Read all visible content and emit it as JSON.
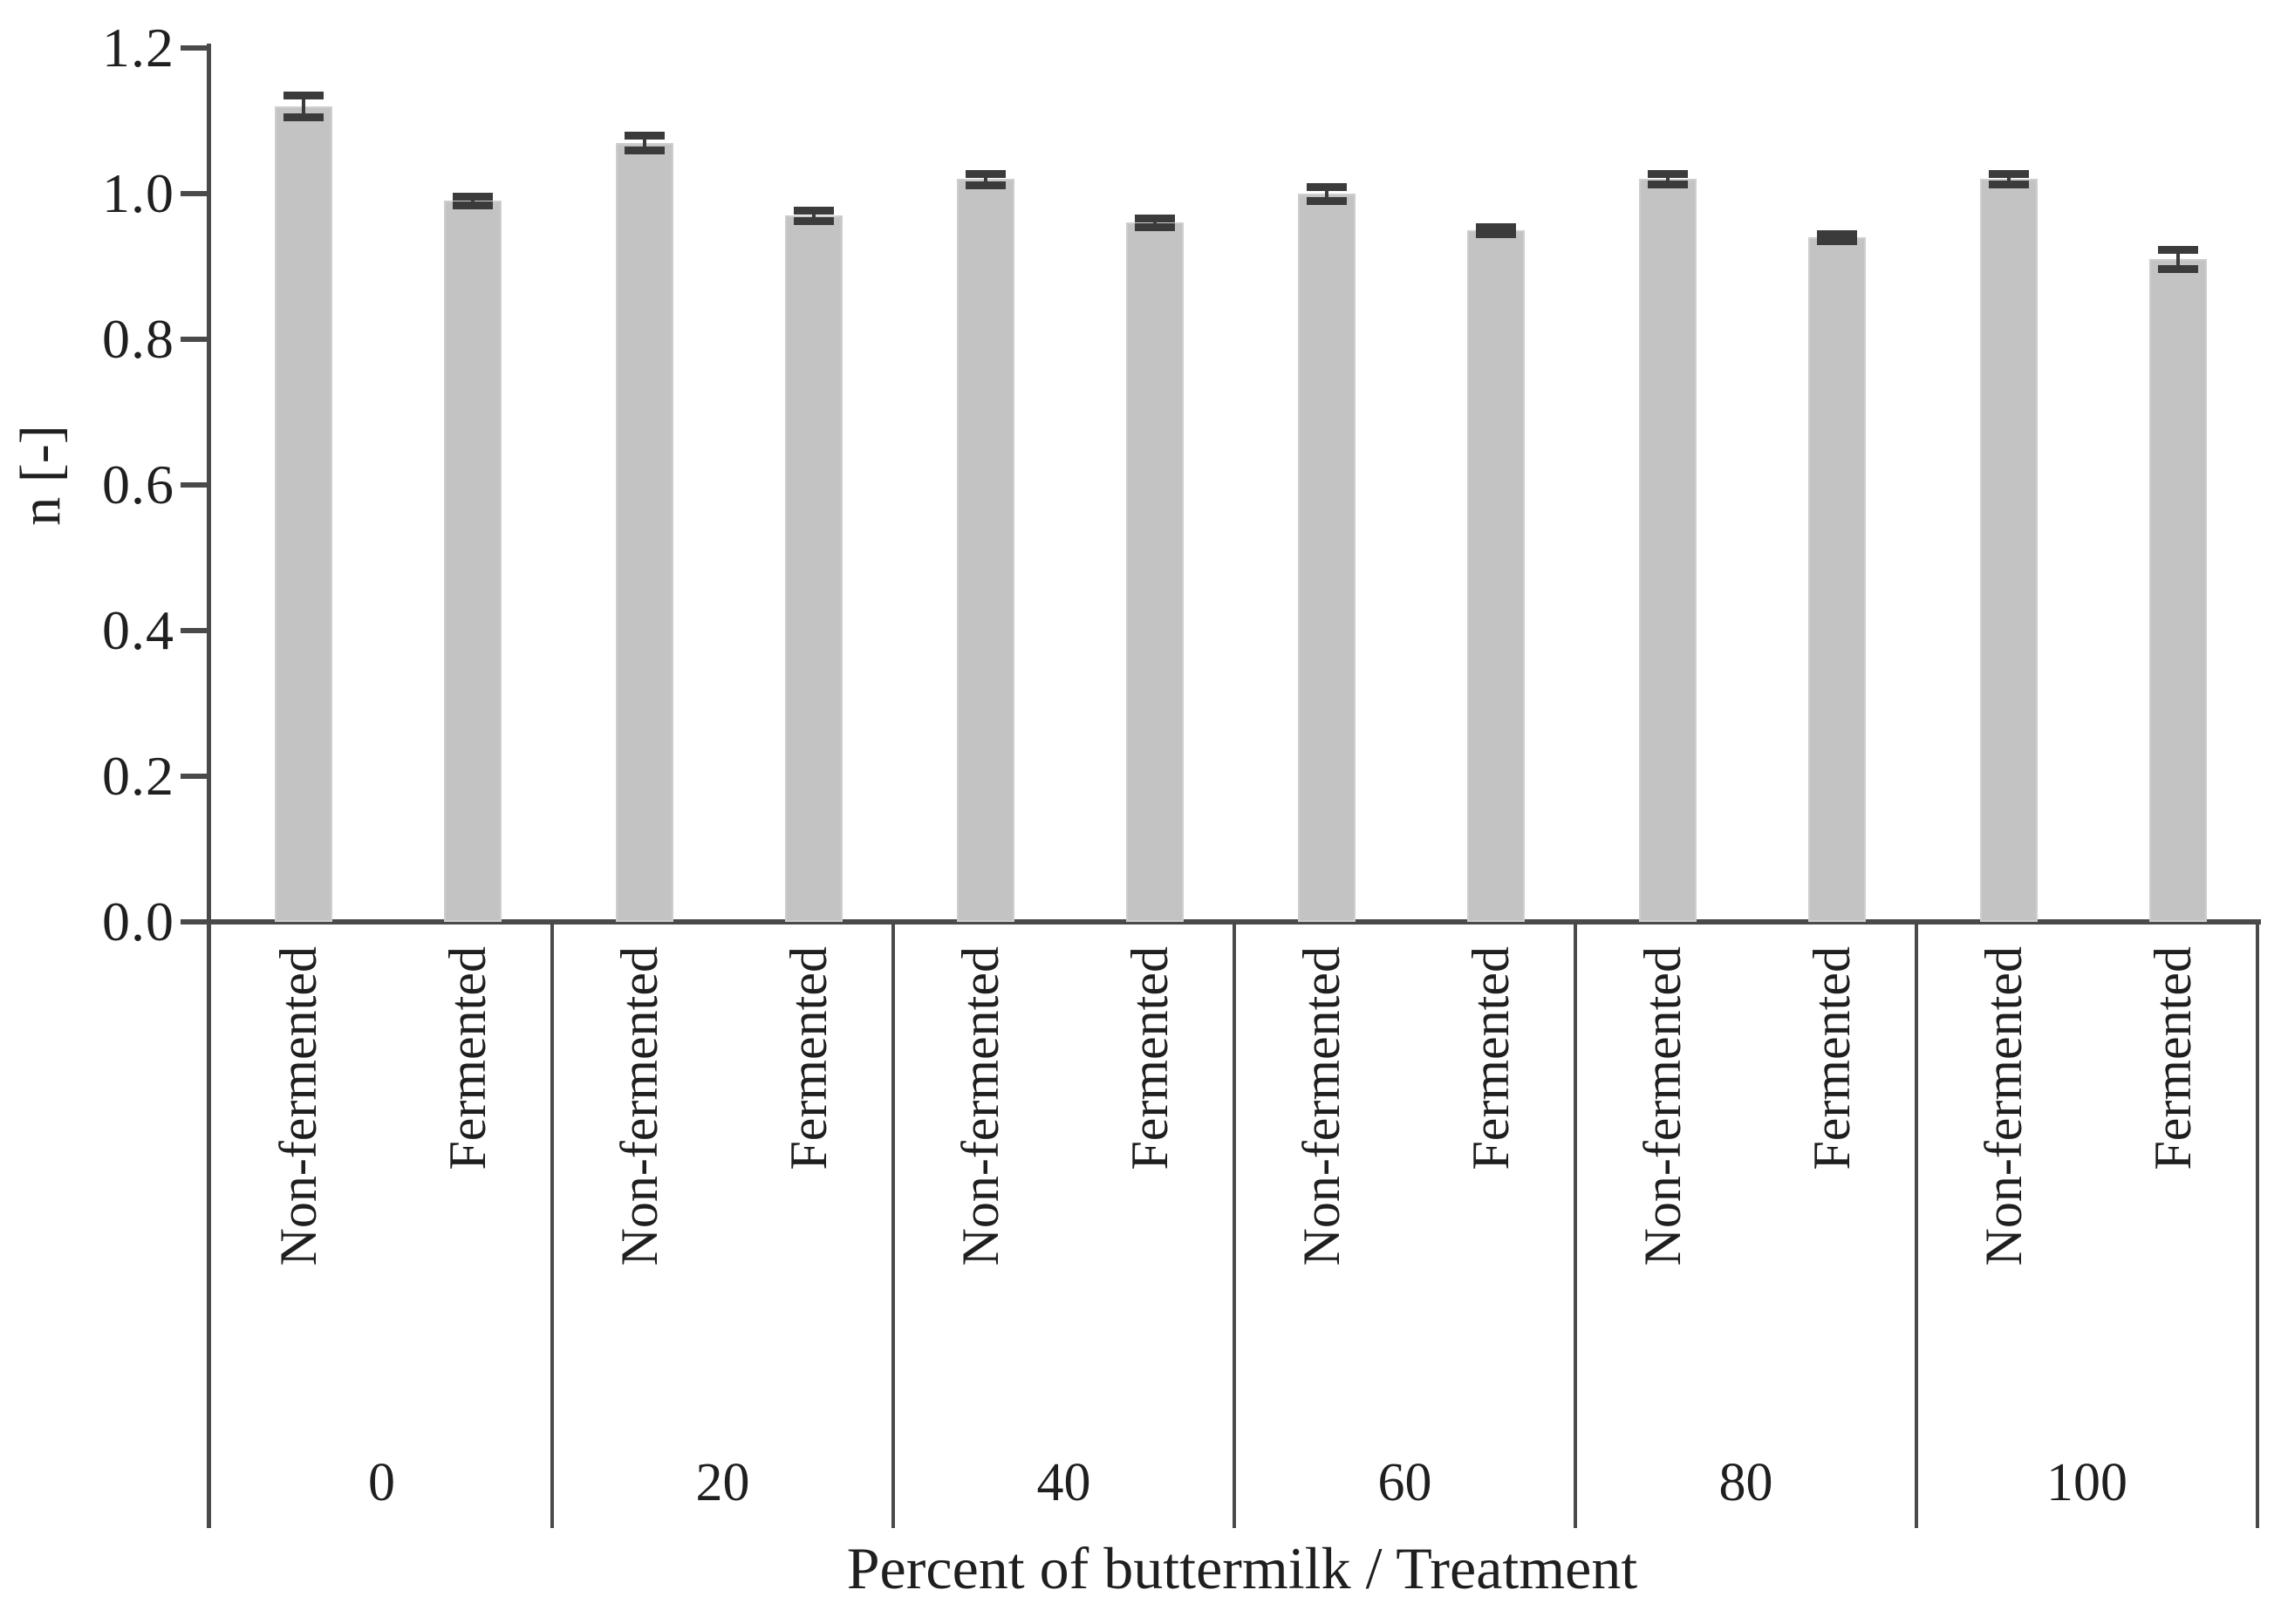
{
  "chart_data": {
    "type": "bar",
    "title": "",
    "xlabel": "Percent of buttermilk / Treatment",
    "ylabel": "n [-]",
    "ylim": [
      0.0,
      1.2
    ],
    "grid": false,
    "legend": "none",
    "yticks": [
      {
        "value": 1.2,
        "label": "1.2"
      },
      {
        "value": 1.0,
        "label": "1.0"
      },
      {
        "value": 0.8,
        "label": "0.8"
      },
      {
        "value": 0.6,
        "label": "0.6"
      },
      {
        "value": 0.4,
        "label": "0.4"
      },
      {
        "value": 0.2,
        "label": "0.2"
      },
      {
        "value": 0.0,
        "label": "0.0"
      }
    ],
    "categories": [
      "0",
      "20",
      "40",
      "60",
      "80",
      "100"
    ],
    "treatments": [
      "Non-fermented",
      "Fermented"
    ],
    "series": [
      {
        "name": "Non-fermented",
        "values": [
          1.12,
          1.07,
          1.02,
          1.0,
          1.02,
          1.02
        ],
        "errors": [
          0.015,
          0.01,
          0.008,
          0.01,
          0.007,
          0.007
        ]
      },
      {
        "name": "Fermented",
        "values": [
          0.99,
          0.97,
          0.96,
          0.95,
          0.94,
          0.91
        ],
        "errors": [
          0.006,
          0.007,
          0.006,
          0.005,
          0.005,
          0.013
        ]
      }
    ],
    "colors": {
      "bar_fill": "#c3c3c3",
      "bar_edge": "#cecece",
      "error_bar": "#3b3b3b",
      "axis_line": "#4a4a4a",
      "text": "#1f1f1f",
      "background": "#ffffff"
    }
  }
}
